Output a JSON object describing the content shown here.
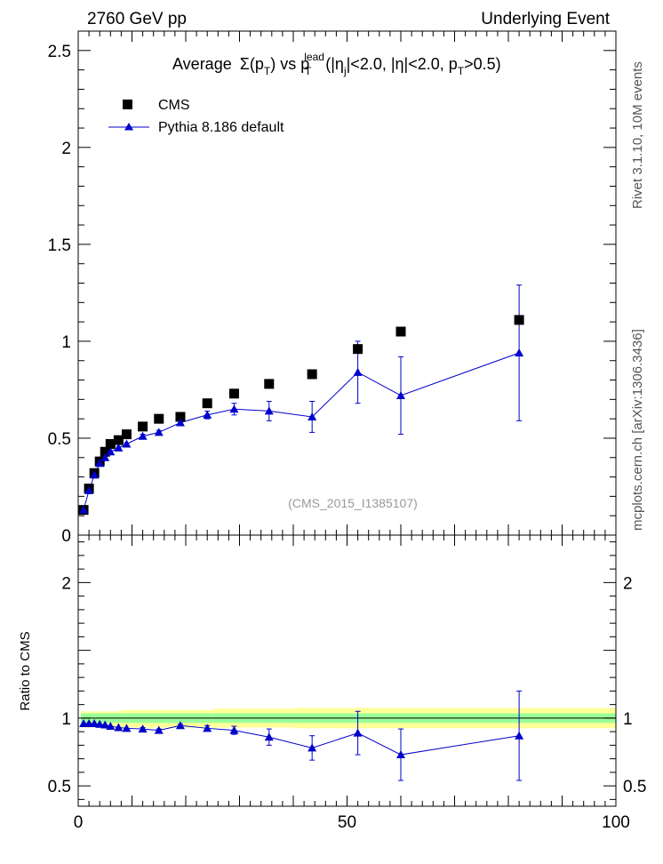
{
  "header": {
    "left": "2760 GeV pp",
    "right": "Underlying Event"
  },
  "side_texts": {
    "rivet": "Rivet 3.1.10, 10M events",
    "mcplots": "mcplots.cern.ch [arXiv:1306.3436]"
  },
  "colors": {
    "data": "#000000",
    "mc": "#0000cc",
    "band_inner": "#99ff99",
    "band_outer": "#ffff99"
  },
  "chart_data": [
    {
      "type": "scatter",
      "title": "Average Σ(pT) vs pT^lead (|ηj|<2.0, |η|<2.0, pT>0.5)",
      "title_parts": {
        "average": "Average",
        "sum": "Σ(p",
        "sub_t": "T",
        "close_vs": ") vs p",
        "sup_lead": "lead",
        "open_eta": "(|η",
        "sub_j": "j",
        "mid": "|<2.0, |η|<2.0, p",
        "end": ">0.5)"
      },
      "watermark": "(CMS_2015_I1385107)",
      "xlim": [
        0,
        100
      ],
      "ylim": [
        0,
        2.6
      ],
      "yticks": [
        "0",
        "0.5",
        "1",
        "1.5",
        "2",
        "2.5"
      ],
      "legend_position": "top-left",
      "series": [
        {
          "name": "CMS",
          "marker": "square",
          "x": [
            1.0,
            2.0,
            3.0,
            4.0,
            5.0,
            6.0,
            7.5,
            9.0,
            12.0,
            15.0,
            19.0,
            24.0,
            29.0,
            35.5,
            43.5,
            52.0,
            60.0,
            82.0
          ],
          "y": [
            0.13,
            0.24,
            0.32,
            0.38,
            0.43,
            0.47,
            0.49,
            0.52,
            0.56,
            0.6,
            0.61,
            0.68,
            0.73,
            0.78,
            0.83,
            0.96,
            1.05,
            1.11
          ]
        },
        {
          "name": "Pythia 8.186 default",
          "marker": "triangle",
          "x": [
            1.0,
            2.0,
            3.0,
            4.0,
            5.0,
            6.0,
            7.5,
            9.0,
            12.0,
            15.0,
            19.0,
            24.0,
            29.0,
            35.5,
            43.5,
            52.0,
            60.0,
            82.0
          ],
          "y": [
            0.13,
            0.23,
            0.31,
            0.37,
            0.4,
            0.43,
            0.45,
            0.47,
            0.51,
            0.53,
            0.58,
            0.62,
            0.65,
            0.64,
            0.61,
            0.84,
            0.72,
            0.94
          ],
          "yerr": [
            0.005,
            0.005,
            0.005,
            0.005,
            0.005,
            0.005,
            0.005,
            0.005,
            0.01,
            0.01,
            0.01,
            0.02,
            0.03,
            0.05,
            0.08,
            0.16,
            0.2,
            0.35
          ]
        }
      ]
    },
    {
      "type": "scatter",
      "ylabel": "Ratio to CMS",
      "xlim": [
        0,
        100
      ],
      "ylim": [
        0.35,
        2.35
      ],
      "xticks": [
        "0",
        "50",
        "100"
      ],
      "yticks": [
        "0.5",
        "1",
        "2"
      ],
      "bands": [
        {
          "x0": 0.5,
          "x1": 8,
          "inner": [
            0.965,
            1.035
          ],
          "outer": [
            0.93,
            1.05
          ]
        },
        {
          "x0": 8,
          "x1": 25,
          "inner": [
            0.965,
            1.035
          ],
          "outer": [
            0.93,
            1.06
          ]
        },
        {
          "x0": 25,
          "x1": 40,
          "inner": [
            0.965,
            1.035
          ],
          "outer": [
            0.93,
            1.07
          ]
        },
        {
          "x0": 40,
          "x1": 100,
          "inner": [
            0.965,
            1.035
          ],
          "outer": [
            0.925,
            1.075
          ]
        }
      ],
      "series": [
        {
          "name": "Pythia 8.186 default",
          "x": [
            1.0,
            2.0,
            3.0,
            4.0,
            5.0,
            6.0,
            7.5,
            9.0,
            12.0,
            15.0,
            19.0,
            24.0,
            29.0,
            35.5,
            43.5,
            52.0,
            60.0,
            82.0
          ],
          "y": [
            0.96,
            0.96,
            0.96,
            0.955,
            0.95,
            0.94,
            0.93,
            0.925,
            0.92,
            0.91,
            0.945,
            0.925,
            0.91,
            0.86,
            0.78,
            0.89,
            0.73,
            0.87
          ],
          "yerr": [
            0.005,
            0.005,
            0.005,
            0.005,
            0.005,
            0.005,
            0.005,
            0.005,
            0.01,
            0.01,
            0.01,
            0.02,
            0.03,
            0.06,
            0.09,
            0.16,
            0.19,
            0.33
          ]
        }
      ]
    }
  ]
}
